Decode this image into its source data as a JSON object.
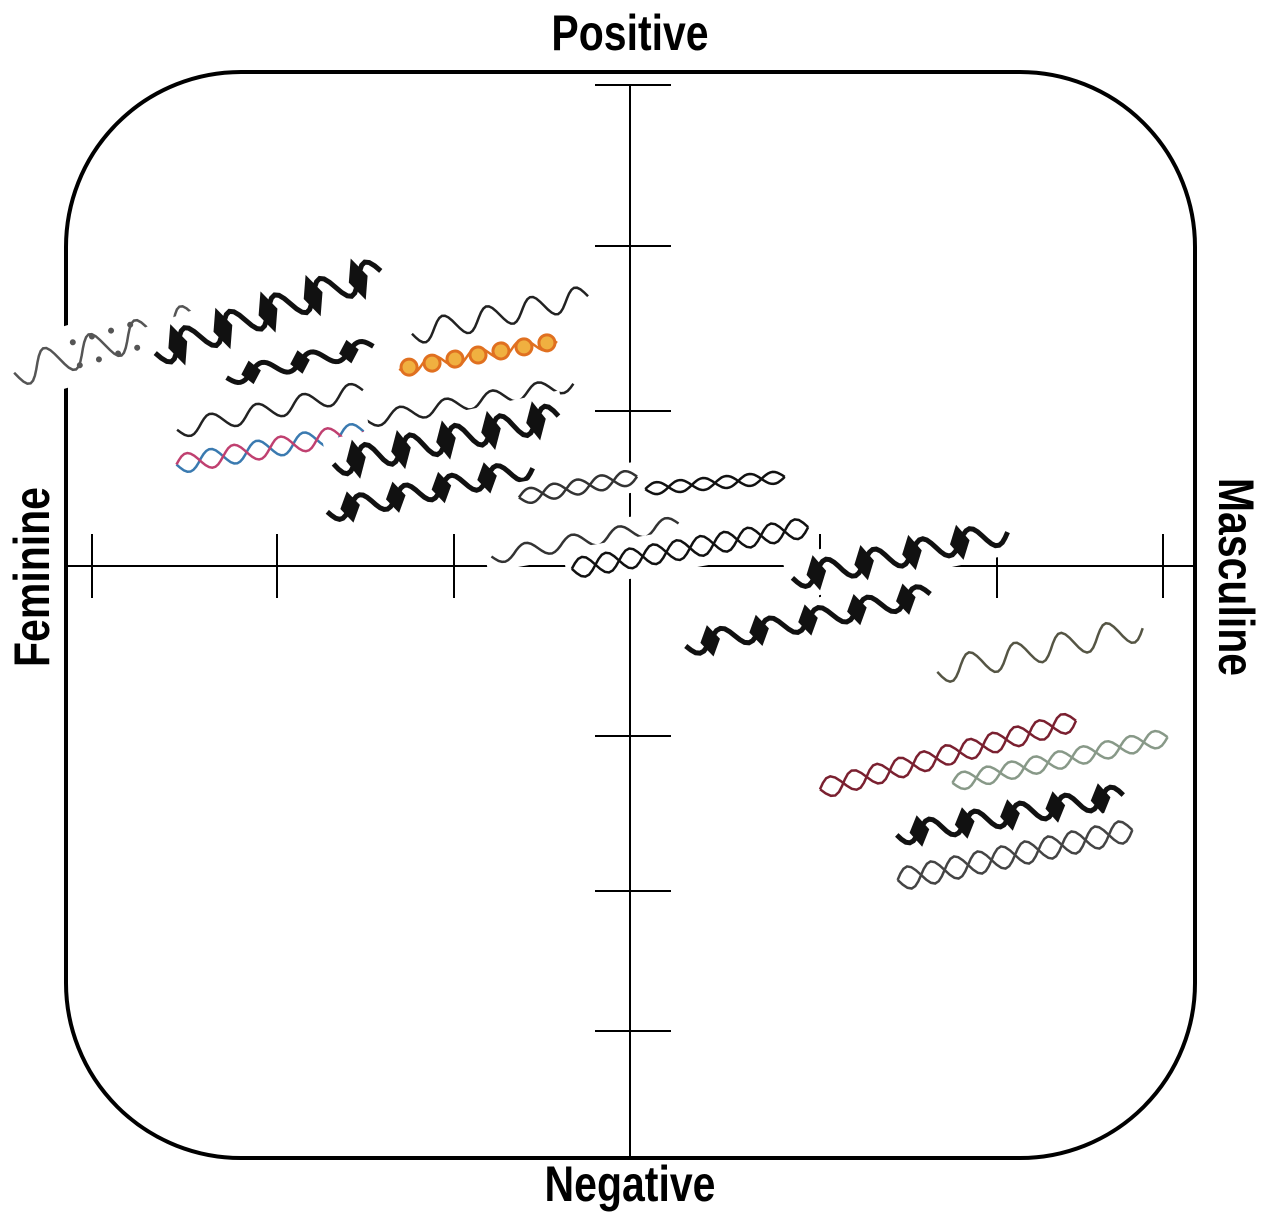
{
  "labels": {
    "top": "Positive",
    "bottom": "Negative",
    "left": "Feminine",
    "right": "Masculine"
  }
}
